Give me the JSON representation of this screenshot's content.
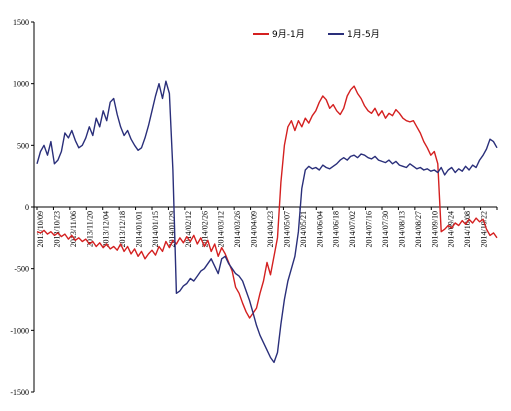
{
  "chart_data": {
    "type": "line",
    "title": "",
    "xlabel": "",
    "ylabel": "",
    "ylim": [
      -1500,
      1500
    ],
    "y_ticks": [
      1500,
      1000,
      500,
      0,
      -500,
      -1000,
      -1500
    ],
    "x_tick_labels": [
      "2013/10/09",
      "2013/10/23",
      "2013/11/06",
      "2013/11/20",
      "2013/12/04",
      "2013/12/18",
      "2014/01/01",
      "2014/01/15",
      "2014/01/29",
      "2014/02/12",
      "2014/02/26",
      "2014/03/12",
      "2014/03/26",
      "2014/04/09",
      "2014/04/23",
      "2014/05/07",
      "2014/05/21",
      "2014/06/04",
      "2014/06/18",
      "2014/07/02",
      "2014/07/16",
      "2014/07/30",
      "2014/08/13",
      "2014/08/27",
      "2014/09/10",
      "2014/09/24",
      "2014/10/08",
      "2014/10/22"
    ],
    "grid": false,
    "legend_position": "top-right",
    "series": [
      {
        "name": "9月-1月",
        "color": "#d42020",
        "points": [
          [
            0,
            -200
          ],
          [
            1,
            -210
          ],
          [
            2,
            -190
          ],
          [
            3,
            -220
          ],
          [
            4,
            -200
          ],
          [
            5,
            -230
          ],
          [
            6,
            -210
          ],
          [
            7,
            -240
          ],
          [
            8,
            -220
          ],
          [
            9,
            -260
          ],
          [
            10,
            -230
          ],
          [
            11,
            -270
          ],
          [
            12,
            -250
          ],
          [
            13,
            -280
          ],
          [
            14,
            -260
          ],
          [
            15,
            -300
          ],
          [
            16,
            -280
          ],
          [
            17,
            -320
          ],
          [
            18,
            -290
          ],
          [
            19,
            -330
          ],
          [
            20,
            -300
          ],
          [
            21,
            -340
          ],
          [
            22,
            -320
          ],
          [
            23,
            -350
          ],
          [
            24,
            -300
          ],
          [
            25,
            -360
          ],
          [
            26,
            -320
          ],
          [
            27,
            -380
          ],
          [
            28,
            -340
          ],
          [
            29,
            -400
          ],
          [
            30,
            -360
          ],
          [
            31,
            -420
          ],
          [
            32,
            -380
          ],
          [
            33,
            -350
          ],
          [
            34,
            -390
          ],
          [
            35,
            -320
          ],
          [
            36,
            -360
          ],
          [
            37,
            -280
          ],
          [
            38,
            -330
          ],
          [
            39,
            -270
          ],
          [
            40,
            -300
          ],
          [
            41,
            -250
          ],
          [
            42,
            -290
          ],
          [
            43,
            -240
          ],
          [
            44,
            -280
          ],
          [
            45,
            -230
          ],
          [
            46,
            -300
          ],
          [
            47,
            -250
          ],
          [
            48,
            -320
          ],
          [
            49,
            -270
          ],
          [
            50,
            -360
          ],
          [
            51,
            -300
          ],
          [
            52,
            -400
          ],
          [
            53,
            -330
          ],
          [
            54,
            -380
          ],
          [
            55,
            -450
          ],
          [
            56,
            -520
          ],
          [
            57,
            -650
          ],
          [
            58,
            -700
          ],
          [
            59,
            -780
          ],
          [
            60,
            -850
          ],
          [
            61,
            -900
          ],
          [
            62,
            -860
          ],
          [
            63,
            -820
          ],
          [
            64,
            -700
          ],
          [
            65,
            -600
          ],
          [
            66,
            -450
          ],
          [
            67,
            -550
          ],
          [
            68,
            -400
          ],
          [
            69,
            -250
          ],
          [
            70,
            200
          ],
          [
            71,
            500
          ],
          [
            72,
            650
          ],
          [
            73,
            700
          ],
          [
            74,
            620
          ],
          [
            75,
            700
          ],
          [
            76,
            650
          ],
          [
            77,
            720
          ],
          [
            78,
            680
          ],
          [
            79,
            740
          ],
          [
            80,
            780
          ],
          [
            81,
            850
          ],
          [
            82,
            900
          ],
          [
            83,
            870
          ],
          [
            84,
            800
          ],
          [
            85,
            830
          ],
          [
            86,
            780
          ],
          [
            87,
            750
          ],
          [
            88,
            800
          ],
          [
            89,
            900
          ],
          [
            90,
            950
          ],
          [
            91,
            980
          ],
          [
            92,
            920
          ],
          [
            93,
            880
          ],
          [
            94,
            820
          ],
          [
            95,
            780
          ],
          [
            96,
            760
          ],
          [
            97,
            800
          ],
          [
            98,
            740
          ],
          [
            99,
            780
          ],
          [
            100,
            720
          ],
          [
            101,
            760
          ],
          [
            102,
            740
          ],
          [
            103,
            790
          ],
          [
            104,
            760
          ],
          [
            105,
            720
          ],
          [
            106,
            700
          ],
          [
            107,
            690
          ],
          [
            108,
            700
          ],
          [
            109,
            650
          ],
          [
            110,
            600
          ],
          [
            111,
            530
          ],
          [
            112,
            480
          ],
          [
            113,
            420
          ],
          [
            114,
            450
          ],
          [
            115,
            350
          ],
          [
            116,
            -200
          ],
          [
            117,
            -180
          ],
          [
            118,
            -150
          ],
          [
            119,
            -170
          ],
          [
            120,
            -130
          ],
          [
            121,
            -150
          ],
          [
            122,
            -110
          ],
          [
            123,
            -140
          ],
          [
            124,
            -100
          ],
          [
            125,
            -130
          ],
          [
            126,
            -90
          ],
          [
            127,
            -120
          ],
          [
            128,
            -100
          ],
          [
            129,
            -180
          ],
          [
            130,
            -230
          ],
          [
            131,
            -210
          ],
          [
            132,
            -250
          ]
        ]
      },
      {
        "name": "1月-5月",
        "color": "#2a2f7a",
        "points": [
          [
            0,
            350
          ],
          [
            1,
            450
          ],
          [
            2,
            500
          ],
          [
            3,
            420
          ],
          [
            4,
            530
          ],
          [
            5,
            350
          ],
          [
            6,
            380
          ],
          [
            7,
            450
          ],
          [
            8,
            600
          ],
          [
            9,
            560
          ],
          [
            10,
            620
          ],
          [
            11,
            540
          ],
          [
            12,
            480
          ],
          [
            13,
            500
          ],
          [
            14,
            560
          ],
          [
            15,
            650
          ],
          [
            16,
            580
          ],
          [
            17,
            720
          ],
          [
            18,
            650
          ],
          [
            19,
            780
          ],
          [
            20,
            700
          ],
          [
            21,
            850
          ],
          [
            22,
            880
          ],
          [
            23,
            750
          ],
          [
            24,
            650
          ],
          [
            25,
            580
          ],
          [
            26,
            620
          ],
          [
            27,
            550
          ],
          [
            28,
            500
          ],
          [
            29,
            460
          ],
          [
            30,
            480
          ],
          [
            31,
            560
          ],
          [
            32,
            660
          ],
          [
            33,
            780
          ],
          [
            34,
            900
          ],
          [
            35,
            1000
          ],
          [
            36,
            880
          ],
          [
            37,
            1020
          ],
          [
            38,
            920
          ],
          [
            39,
            300
          ],
          [
            40,
            -700
          ],
          [
            41,
            -680
          ],
          [
            42,
            -640
          ],
          [
            43,
            -620
          ],
          [
            44,
            -580
          ],
          [
            45,
            -600
          ],
          [
            46,
            -560
          ],
          [
            47,
            -520
          ],
          [
            48,
            -500
          ],
          [
            49,
            -460
          ],
          [
            50,
            -420
          ],
          [
            51,
            -480
          ],
          [
            52,
            -540
          ],
          [
            53,
            -420
          ],
          [
            54,
            -400
          ],
          [
            55,
            -460
          ],
          [
            56,
            -500
          ],
          [
            57,
            -540
          ],
          [
            58,
            -560
          ],
          [
            59,
            -600
          ],
          [
            60,
            -680
          ],
          [
            61,
            -760
          ],
          [
            62,
            -860
          ],
          [
            63,
            -960
          ],
          [
            64,
            -1040
          ],
          [
            65,
            -1100
          ],
          [
            66,
            -1160
          ],
          [
            67,
            -1220
          ],
          [
            68,
            -1260
          ],
          [
            69,
            -1180
          ],
          [
            70,
            -950
          ],
          [
            71,
            -750
          ],
          [
            72,
            -600
          ],
          [
            73,
            -500
          ],
          [
            74,
            -400
          ],
          [
            75,
            -200
          ],
          [
            76,
            150
          ],
          [
            77,
            300
          ],
          [
            78,
            330
          ],
          [
            79,
            310
          ],
          [
            80,
            320
          ],
          [
            81,
            300
          ],
          [
            82,
            340
          ],
          [
            83,
            320
          ],
          [
            84,
            310
          ],
          [
            85,
            330
          ],
          [
            86,
            350
          ],
          [
            87,
            380
          ],
          [
            88,
            400
          ],
          [
            89,
            380
          ],
          [
            90,
            410
          ],
          [
            91,
            420
          ],
          [
            92,
            400
          ],
          [
            93,
            430
          ],
          [
            94,
            420
          ],
          [
            95,
            400
          ],
          [
            96,
            390
          ],
          [
            97,
            410
          ],
          [
            98,
            380
          ],
          [
            99,
            370
          ],
          [
            100,
            360
          ],
          [
            101,
            380
          ],
          [
            102,
            350
          ],
          [
            103,
            370
          ],
          [
            104,
            340
          ],
          [
            105,
            330
          ],
          [
            106,
            320
          ],
          [
            107,
            350
          ],
          [
            108,
            330
          ],
          [
            109,
            310
          ],
          [
            110,
            320
          ],
          [
            111,
            300
          ],
          [
            112,
            310
          ],
          [
            113,
            290
          ],
          [
            114,
            300
          ],
          [
            115,
            280
          ],
          [
            116,
            320
          ],
          [
            117,
            260
          ],
          [
            118,
            300
          ],
          [
            119,
            320
          ],
          [
            120,
            280
          ],
          [
            121,
            310
          ],
          [
            122,
            290
          ],
          [
            123,
            330
          ],
          [
            124,
            300
          ],
          [
            125,
            340
          ],
          [
            126,
            320
          ],
          [
            127,
            380
          ],
          [
            128,
            420
          ],
          [
            129,
            470
          ],
          [
            130,
            550
          ],
          [
            131,
            530
          ],
          [
            132,
            480
          ]
        ]
      }
    ]
  }
}
